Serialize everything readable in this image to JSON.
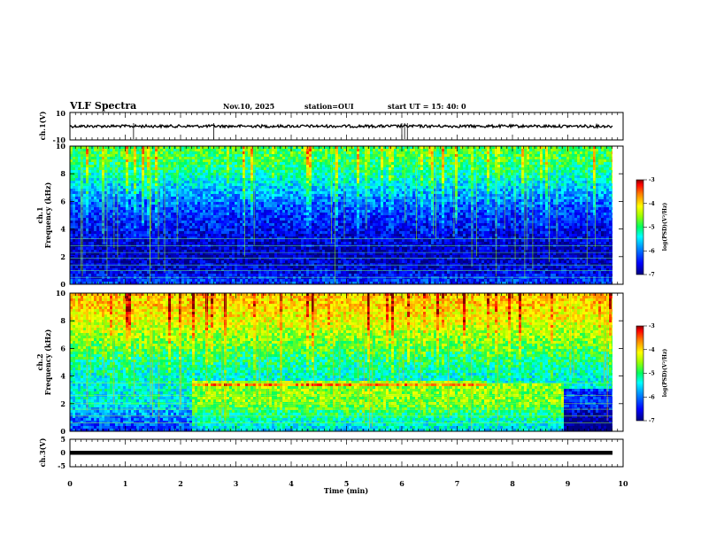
{
  "header": {
    "title": "VLF Spectra",
    "date": "Nov.10, 2025",
    "station": "station=OUI",
    "start": "start UT =  15: 40: 0"
  },
  "colors": {
    "colormap": [
      "#000080",
      "#0000ff",
      "#00a0ff",
      "#00ffff",
      "#00ff60",
      "#a0ff00",
      "#ffff00",
      "#ff8000",
      "#ff0000",
      "#800000"
    ],
    "axis": "#000000",
    "background": "#ffffff"
  },
  "chart_data": [
    {
      "type": "line",
      "panel": "waveform-ch1",
      "ylabel": "ch.1(V)",
      "ylim": [
        -10,
        10
      ],
      "y_ticks": [
        "10",
        "-10"
      ],
      "xlim": [
        0,
        10
      ],
      "series": [
        {
          "values_approx_level": 0,
          "amplitude_approx": 1,
          "spike_times_min": [
            1.15,
            2.6,
            6.0,
            6.05,
            6.1
          ]
        }
      ]
    },
    {
      "type": "heatmap",
      "panel": "spectrogram-ch1",
      "ylabel": "ch.1\nFrequency (kHz)",
      "ylim": [
        0,
        10
      ],
      "y_ticks": [
        "0",
        "2",
        "4",
        "6",
        "8",
        "10"
      ],
      "xlim": [
        0,
        10
      ],
      "colorbar": {
        "label": "log(PSD)(V²/Hz)",
        "ticks": [
          "-3",
          "-4",
          "-5",
          "-6",
          "-7"
        ],
        "range": [
          -7,
          -3
        ]
      },
      "profile": {
        "freq_khz": [
          0,
          1,
          2,
          3,
          4,
          5,
          6,
          7,
          8,
          9,
          10
        ],
        "log_psd": [
          -6.2,
          -6.6,
          -6.8,
          -6.7,
          -6.5,
          -6.3,
          -6.0,
          -5.6,
          -5.2,
          -4.9,
          -4.8
        ]
      }
    },
    {
      "type": "heatmap",
      "panel": "spectrogram-ch2",
      "ylabel": "ch.2\nFrequency (kHz)",
      "ylim": [
        0,
        10
      ],
      "y_ticks": [
        "0",
        "2",
        "4",
        "6",
        "8",
        "10"
      ],
      "xlim": [
        0,
        10
      ],
      "colorbar": {
        "label": "log(PSD)(V²/Hz)",
        "ticks": [
          "-3",
          "-4",
          "-5",
          "-6",
          "-7"
        ],
        "range": [
          -7,
          -3
        ]
      },
      "profile": {
        "freq_khz": [
          0,
          1,
          2,
          3,
          4,
          5,
          6,
          7,
          8,
          9,
          10
        ],
        "log_psd": [
          -6.3,
          -6.0,
          -5.4,
          -5.4,
          -5.3,
          -5.1,
          -4.8,
          -4.5,
          -4.2,
          -4.0,
          -3.9
        ]
      },
      "band_change_times_min": [
        2.2,
        7.5,
        8.9
      ]
    },
    {
      "type": "line",
      "panel": "waveform-ch3",
      "ylabel": "ch.3(V)",
      "ylim": [
        -5,
        5
      ],
      "y_ticks": [
        "5",
        "0",
        "-5"
      ],
      "xlim": [
        0,
        10
      ],
      "series": [
        {
          "values_approx_level": 0
        }
      ]
    }
  ],
  "x_axis": {
    "label": "Time (min)",
    "ticks": [
      "0",
      "1",
      "2",
      "3",
      "4",
      "5",
      "6",
      "7",
      "8",
      "9",
      "10"
    ]
  }
}
